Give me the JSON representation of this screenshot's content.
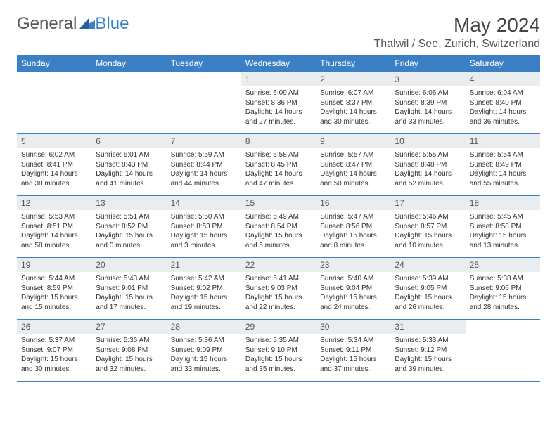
{
  "logo": {
    "text1": "General",
    "text2": "Blue"
  },
  "header": {
    "month_title": "May 2024",
    "location": "Thalwil / See, Zurich, Switzerland"
  },
  "colors": {
    "header_bg": "#3b7fc4",
    "header_fg": "#ffffff",
    "daynum_bg": "#e9edf0",
    "border": "#3b7fc4",
    "text": "#333333"
  },
  "weekdays": [
    "Sunday",
    "Monday",
    "Tuesday",
    "Wednesday",
    "Thursday",
    "Friday",
    "Saturday"
  ],
  "weeks": [
    [
      {
        "n": "",
        "sr": "",
        "ss": "",
        "dl": ""
      },
      {
        "n": "",
        "sr": "",
        "ss": "",
        "dl": ""
      },
      {
        "n": "",
        "sr": "",
        "ss": "",
        "dl": ""
      },
      {
        "n": "1",
        "sr": "Sunrise: 6:09 AM",
        "ss": "Sunset: 8:36 PM",
        "dl": "Daylight: 14 hours and 27 minutes."
      },
      {
        "n": "2",
        "sr": "Sunrise: 6:07 AM",
        "ss": "Sunset: 8:37 PM",
        "dl": "Daylight: 14 hours and 30 minutes."
      },
      {
        "n": "3",
        "sr": "Sunrise: 6:06 AM",
        "ss": "Sunset: 8:39 PM",
        "dl": "Daylight: 14 hours and 33 minutes."
      },
      {
        "n": "4",
        "sr": "Sunrise: 6:04 AM",
        "ss": "Sunset: 8:40 PM",
        "dl": "Daylight: 14 hours and 36 minutes."
      }
    ],
    [
      {
        "n": "5",
        "sr": "Sunrise: 6:02 AM",
        "ss": "Sunset: 8:41 PM",
        "dl": "Daylight: 14 hours and 38 minutes."
      },
      {
        "n": "6",
        "sr": "Sunrise: 6:01 AM",
        "ss": "Sunset: 8:43 PM",
        "dl": "Daylight: 14 hours and 41 minutes."
      },
      {
        "n": "7",
        "sr": "Sunrise: 5:59 AM",
        "ss": "Sunset: 8:44 PM",
        "dl": "Daylight: 14 hours and 44 minutes."
      },
      {
        "n": "8",
        "sr": "Sunrise: 5:58 AM",
        "ss": "Sunset: 8:45 PM",
        "dl": "Daylight: 14 hours and 47 minutes."
      },
      {
        "n": "9",
        "sr": "Sunrise: 5:57 AM",
        "ss": "Sunset: 8:47 PM",
        "dl": "Daylight: 14 hours and 50 minutes."
      },
      {
        "n": "10",
        "sr": "Sunrise: 5:55 AM",
        "ss": "Sunset: 8:48 PM",
        "dl": "Daylight: 14 hours and 52 minutes."
      },
      {
        "n": "11",
        "sr": "Sunrise: 5:54 AM",
        "ss": "Sunset: 8:49 PM",
        "dl": "Daylight: 14 hours and 55 minutes."
      }
    ],
    [
      {
        "n": "12",
        "sr": "Sunrise: 5:53 AM",
        "ss": "Sunset: 8:51 PM",
        "dl": "Daylight: 14 hours and 58 minutes."
      },
      {
        "n": "13",
        "sr": "Sunrise: 5:51 AM",
        "ss": "Sunset: 8:52 PM",
        "dl": "Daylight: 15 hours and 0 minutes."
      },
      {
        "n": "14",
        "sr": "Sunrise: 5:50 AM",
        "ss": "Sunset: 8:53 PM",
        "dl": "Daylight: 15 hours and 3 minutes."
      },
      {
        "n": "15",
        "sr": "Sunrise: 5:49 AM",
        "ss": "Sunset: 8:54 PM",
        "dl": "Daylight: 15 hours and 5 minutes."
      },
      {
        "n": "16",
        "sr": "Sunrise: 5:47 AM",
        "ss": "Sunset: 8:56 PM",
        "dl": "Daylight: 15 hours and 8 minutes."
      },
      {
        "n": "17",
        "sr": "Sunrise: 5:46 AM",
        "ss": "Sunset: 8:57 PM",
        "dl": "Daylight: 15 hours and 10 minutes."
      },
      {
        "n": "18",
        "sr": "Sunrise: 5:45 AM",
        "ss": "Sunset: 8:58 PM",
        "dl": "Daylight: 15 hours and 13 minutes."
      }
    ],
    [
      {
        "n": "19",
        "sr": "Sunrise: 5:44 AM",
        "ss": "Sunset: 8:59 PM",
        "dl": "Daylight: 15 hours and 15 minutes."
      },
      {
        "n": "20",
        "sr": "Sunrise: 5:43 AM",
        "ss": "Sunset: 9:01 PM",
        "dl": "Daylight: 15 hours and 17 minutes."
      },
      {
        "n": "21",
        "sr": "Sunrise: 5:42 AM",
        "ss": "Sunset: 9:02 PM",
        "dl": "Daylight: 15 hours and 19 minutes."
      },
      {
        "n": "22",
        "sr": "Sunrise: 5:41 AM",
        "ss": "Sunset: 9:03 PM",
        "dl": "Daylight: 15 hours and 22 minutes."
      },
      {
        "n": "23",
        "sr": "Sunrise: 5:40 AM",
        "ss": "Sunset: 9:04 PM",
        "dl": "Daylight: 15 hours and 24 minutes."
      },
      {
        "n": "24",
        "sr": "Sunrise: 5:39 AM",
        "ss": "Sunset: 9:05 PM",
        "dl": "Daylight: 15 hours and 26 minutes."
      },
      {
        "n": "25",
        "sr": "Sunrise: 5:38 AM",
        "ss": "Sunset: 9:06 PM",
        "dl": "Daylight: 15 hours and 28 minutes."
      }
    ],
    [
      {
        "n": "26",
        "sr": "Sunrise: 5:37 AM",
        "ss": "Sunset: 9:07 PM",
        "dl": "Daylight: 15 hours and 30 minutes."
      },
      {
        "n": "27",
        "sr": "Sunrise: 5:36 AM",
        "ss": "Sunset: 9:08 PM",
        "dl": "Daylight: 15 hours and 32 minutes."
      },
      {
        "n": "28",
        "sr": "Sunrise: 5:36 AM",
        "ss": "Sunset: 9:09 PM",
        "dl": "Daylight: 15 hours and 33 minutes."
      },
      {
        "n": "29",
        "sr": "Sunrise: 5:35 AM",
        "ss": "Sunset: 9:10 PM",
        "dl": "Daylight: 15 hours and 35 minutes."
      },
      {
        "n": "30",
        "sr": "Sunrise: 5:34 AM",
        "ss": "Sunset: 9:11 PM",
        "dl": "Daylight: 15 hours and 37 minutes."
      },
      {
        "n": "31",
        "sr": "Sunrise: 5:33 AM",
        "ss": "Sunset: 9:12 PM",
        "dl": "Daylight: 15 hours and 39 minutes."
      },
      {
        "n": "",
        "sr": "",
        "ss": "",
        "dl": ""
      }
    ]
  ]
}
